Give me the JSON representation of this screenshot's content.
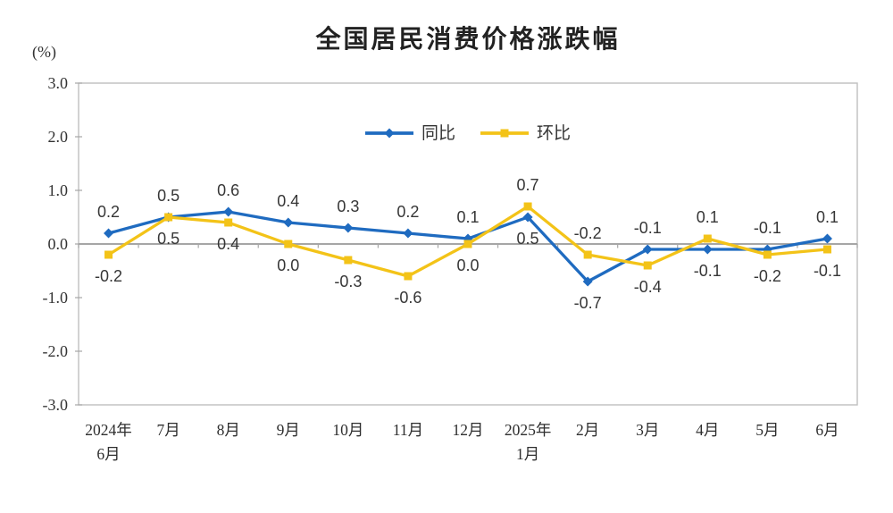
{
  "chart_data": {
    "type": "line",
    "title": "全国居民消费价格涨跌幅",
    "unit_label": "(%)",
    "categories": [
      [
        "2024年",
        "6月"
      ],
      [
        "7月"
      ],
      [
        "8月"
      ],
      [
        "9月"
      ],
      [
        "10月"
      ],
      [
        "11月"
      ],
      [
        "12月"
      ],
      [
        "2025年",
        "1月"
      ],
      [
        "2月"
      ],
      [
        "3月"
      ],
      [
        "4月"
      ],
      [
        "5月"
      ],
      [
        "6月"
      ]
    ],
    "ylim": [
      -3.0,
      3.0
    ],
    "yticks": [
      3.0,
      2.0,
      1.0,
      0.0,
      -1.0,
      -2.0,
      -3.0
    ],
    "grid": "zero-baseline-only",
    "legend_position": "top-center-inside",
    "axis_color": "#BFBFBF",
    "zero_line_color": "#A6A6A6",
    "series": [
      {
        "key": "yoy",
        "name": "同比",
        "color": "#1F6BC0",
        "marker": "diamond",
        "values": [
          0.2,
          0.5,
          0.6,
          0.4,
          0.3,
          0.2,
          0.1,
          0.5,
          -0.7,
          -0.1,
          -0.1,
          -0.1,
          0.1
        ],
        "label_side": [
          "above",
          "above",
          "above",
          "above",
          "above",
          "above",
          "above",
          "below",
          "below",
          "above",
          "below",
          "above",
          "above"
        ]
      },
      {
        "key": "mom",
        "name": "环比",
        "color": "#F3C318",
        "marker": "square",
        "values": [
          -0.2,
          0.5,
          0.4,
          0.0,
          -0.3,
          -0.6,
          0.0,
          0.7,
          -0.2,
          -0.4,
          0.1,
          -0.2,
          -0.1
        ],
        "label_side": [
          "below",
          "below",
          "below",
          "below",
          "below",
          "below",
          "below",
          "above",
          "above",
          "below",
          "above",
          "below",
          "below"
        ]
      }
    ]
  }
}
